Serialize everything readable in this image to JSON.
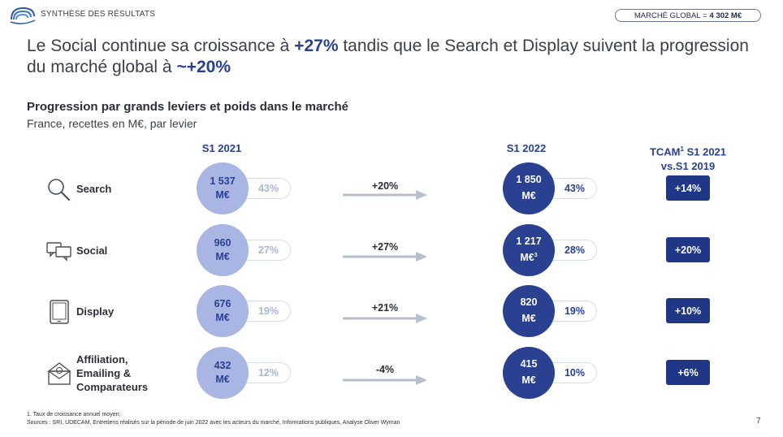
{
  "header": {
    "section_title": "SYNTHÈSE DES RÉSULTATS",
    "market_label": "MARCHÉ GLOBAL =",
    "market_value": "4 302 M€"
  },
  "headline": {
    "part1": "Le Social continue sa croissance à ",
    "highlight1": "+27%",
    "part2": " tandis que le Search et Display suivent la progression du marché global à ",
    "highlight2": "~+20%"
  },
  "chart_title": "Progression par grands leviers et poids dans le marché",
  "chart_subtitle": "France, recettes en M€, par levier",
  "columns": {
    "s1_2021": "S1 2021",
    "s1_2022": "S1 2022",
    "tcam_line1": "TCAM",
    "tcam_sup": "1",
    "tcam_line1_rest": " S1 2021",
    "tcam_line2": "vs.S1 2019"
  },
  "colors": {
    "accent": "#2a4192",
    "light_circle": "#a9b6e3",
    "tcam_box": "#1f3784",
    "arrow": "#b8bfcc"
  },
  "chart_data": {
    "type": "table",
    "rows": [
      {
        "label": "Search",
        "icon": "magnifier-icon",
        "v2021_line1": "1 537",
        "v2021_line2": "M€",
        "share2021": "43%",
        "growth": "+20%",
        "v2022_line1": "1 850",
        "v2022_line2": "M€",
        "v2022_sup": "",
        "share2022": "43%",
        "tcam": "+14%"
      },
      {
        "label": "Social",
        "icon": "chat-bubbles-icon",
        "v2021_line1": "960",
        "v2021_line2": "M€",
        "share2021": "27%",
        "growth": "+27%",
        "v2022_line1": "1 217",
        "v2022_line2": "M€",
        "v2022_sup": "3",
        "share2022": "28%",
        "tcam": "+20%"
      },
      {
        "label": "Display",
        "icon": "tablet-icon",
        "v2021_line1": "676",
        "v2021_line2": "M€",
        "share2021": "19%",
        "growth": "+21%",
        "v2022_line1": "820",
        "v2022_line2": "M€",
        "v2022_sup": "",
        "share2022": "19%",
        "tcam": "+10%"
      },
      {
        "label_line1": "Affiliation,",
        "label_line2": "Emailing &",
        "label_line3": "Comparateurs",
        "icon": "envelope-icon",
        "v2021_line1": "432",
        "v2021_line2": "M€",
        "share2021": "12%",
        "growth": "-4%",
        "v2022_line1": "415",
        "v2022_line2": "M€",
        "v2022_sup": "",
        "share2022": "10%",
        "tcam": "+6%"
      }
    ]
  },
  "footnotes": {
    "note1": "1. Taux de croissance annuel moyen;",
    "sources": "Sources : SRI, UDECAM, Entretiens réalisés sur la période de juin 2022 avec les acteurs du marché, Informations publiques, Analyse Oliver Wyman"
  },
  "page_number": "7"
}
